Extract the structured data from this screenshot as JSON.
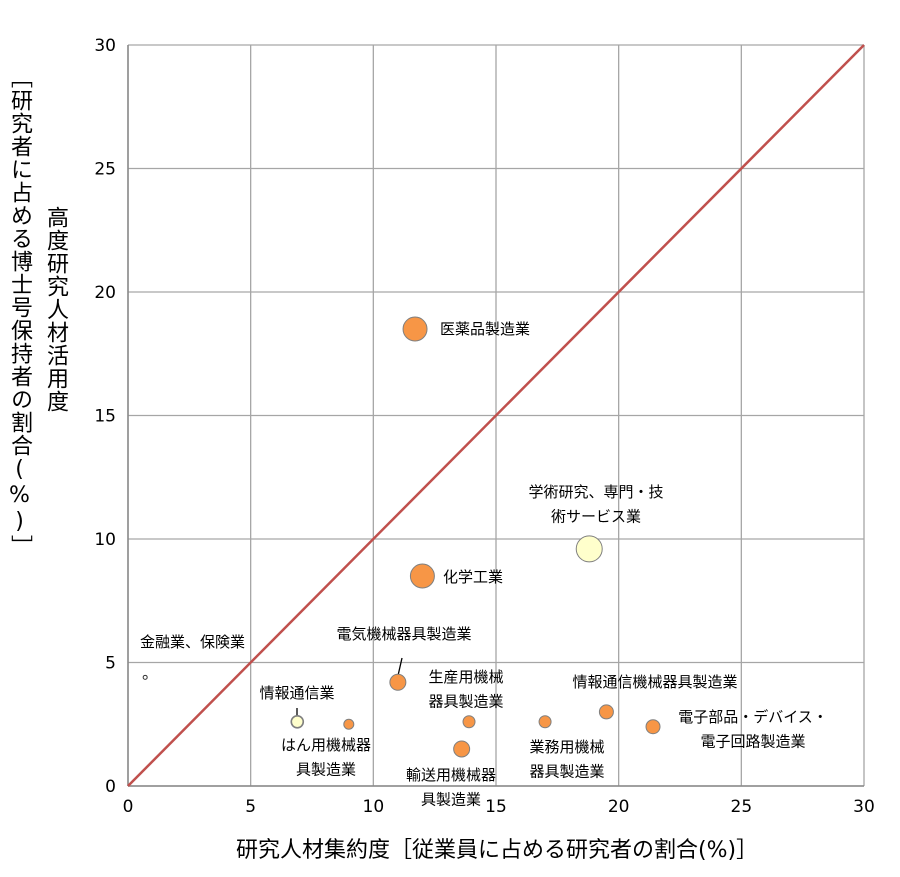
{
  "chart_data": {
    "type": "scatter",
    "subtype": "bubble",
    "title": "",
    "xlabel": "研究人材集約度［従業員に占める研究者の割合(%)］",
    "ylabel_main": "高度研究人材活用度",
    "ylabel_sub": "［研究者に占める博士号保持者の割合(%)］",
    "xlim": [
      0,
      30
    ],
    "ylim": [
      0,
      30
    ],
    "xticks": [
      "0",
      "5",
      "10",
      "15",
      "20",
      "25",
      "30"
    ],
    "yticks": [
      "0",
      "5",
      "10",
      "15",
      "20",
      "25",
      "30"
    ],
    "grid": true,
    "reference_line": {
      "from": [
        0,
        0
      ],
      "to": [
        30,
        30
      ],
      "color": "#c0504d"
    },
    "colors": {
      "orange": "#f79646",
      "light_yellow": "#ffffcc",
      "white": "#ffffff",
      "grid": "#a6a6a6"
    },
    "points": [
      {
        "label": [
          "医薬品製造業"
        ],
        "x": 11.7,
        "y": 18.5,
        "size": 12,
        "color": "orange"
      },
      {
        "label": [
          "学術研究、専門・技",
          "術サービス業"
        ],
        "x": 18.8,
        "y": 9.6,
        "size": 13,
        "color": "light_yellow"
      },
      {
        "label": [
          "化学工業"
        ],
        "x": 12.0,
        "y": 8.5,
        "size": 12,
        "color": "orange"
      },
      {
        "label": [
          "電気機械器具製造業"
        ],
        "x": 11.0,
        "y": 4.2,
        "size": 8,
        "color": "orange"
      },
      {
        "label": [
          "金融業、保険業"
        ],
        "x": 0.7,
        "y": 4.4,
        "size": 2,
        "color": "white"
      },
      {
        "label": [
          "情報通信業"
        ],
        "x": 6.9,
        "y": 2.6,
        "size": 6,
        "color": "light_yellow"
      },
      {
        "label": [
          "はん用機械器",
          "具製造業"
        ],
        "x": 9.0,
        "y": 2.5,
        "size": 5,
        "color": "orange"
      },
      {
        "label": [
          "生産用機械",
          "器具製造業"
        ],
        "x": 13.9,
        "y": 2.6,
        "size": 6,
        "color": "orange"
      },
      {
        "label": [
          "輸送用機械器",
          "具製造業"
        ],
        "x": 13.6,
        "y": 1.5,
        "size": 8,
        "color": "orange"
      },
      {
        "label": [
          "業務用機械",
          "器具製造業"
        ],
        "x": 17.0,
        "y": 2.6,
        "size": 6,
        "color": "orange"
      },
      {
        "label": [
          "情報通信機械器具製造業"
        ],
        "x": 19.5,
        "y": 3.0,
        "size": 7,
        "color": "orange"
      },
      {
        "label": [
          "電子部品・デバイス・",
          "電子回路製造業"
        ],
        "x": 21.4,
        "y": 2.4,
        "size": 7,
        "color": "orange"
      }
    ]
  }
}
